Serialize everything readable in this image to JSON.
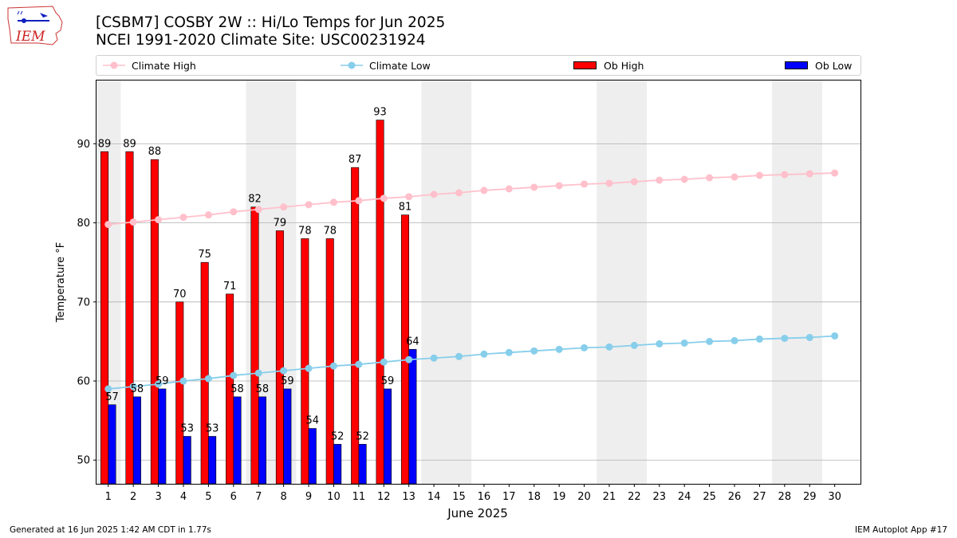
{
  "header": {
    "logo_text": "IEM",
    "title_line1": "[CSBM7] COSBY 2W :: Hi/Lo Temps for Jun 2025",
    "title_line2": "NCEI 1991-2020 Climate Site: USC00231924"
  },
  "legend": {
    "climate_high": "Climate High",
    "climate_low": "Climate Low",
    "ob_high": "Ob High",
    "ob_low": "Ob Low"
  },
  "footer": {
    "left": "Generated at 16 Jun 2025 1:42 AM CDT in 1.77s",
    "right": "IEM Autoplot App #17"
  },
  "chart_data": {
    "type": "bar",
    "title": "[CSBM7] COSBY 2W :: Hi/Lo Temps for Jun 2025",
    "subtitle": "NCEI 1991-2020 Climate Site: USC00231924",
    "xlabel": "June 2025",
    "ylabel": "Temperature °F",
    "ylim": [
      47,
      98
    ],
    "yticks": [
      50,
      60,
      70,
      80,
      90
    ],
    "grid": "horizontal",
    "legend_position": "top",
    "days": [
      1,
      2,
      3,
      4,
      5,
      6,
      7,
      8,
      9,
      10,
      11,
      12,
      13,
      14,
      15,
      16,
      17,
      18,
      19,
      20,
      21,
      22,
      23,
      24,
      25,
      26,
      27,
      28,
      29,
      30
    ],
    "weekend_days": [
      1,
      7,
      8,
      14,
      15,
      21,
      22,
      28,
      29
    ],
    "series": [
      {
        "name": "Ob High",
        "kind": "bar",
        "color": "#ff0000",
        "values": [
          89,
          89,
          88,
          70,
          75,
          71,
          82,
          79,
          78,
          78,
          87,
          93,
          81
        ]
      },
      {
        "name": "Ob Low",
        "kind": "bar",
        "color": "#0000ff",
        "values": [
          57,
          58,
          59,
          53,
          53,
          58,
          58,
          59,
          54,
          52,
          52,
          59,
          64
        ]
      },
      {
        "name": "Climate High",
        "kind": "line",
        "color": "#ffc0cb",
        "values": [
          79.8,
          80.1,
          80.4,
          80.7,
          81.0,
          81.4,
          81.7,
          82.0,
          82.3,
          82.6,
          82.8,
          83.1,
          83.3,
          83.6,
          83.8,
          84.1,
          84.3,
          84.5,
          84.7,
          84.9,
          85.0,
          85.2,
          85.4,
          85.5,
          85.7,
          85.8,
          86.0,
          86.1,
          86.2,
          86.3
        ]
      },
      {
        "name": "Climate Low",
        "kind": "line",
        "color": "#87ceeb",
        "values": [
          59.0,
          59.3,
          59.6,
          60.0,
          60.3,
          60.7,
          61.0,
          61.3,
          61.6,
          61.9,
          62.1,
          62.4,
          62.7,
          62.9,
          63.1,
          63.4,
          63.6,
          63.8,
          64.0,
          64.2,
          64.3,
          64.5,
          64.7,
          64.8,
          65.0,
          65.1,
          65.3,
          65.4,
          65.5,
          65.7
        ]
      }
    ]
  }
}
